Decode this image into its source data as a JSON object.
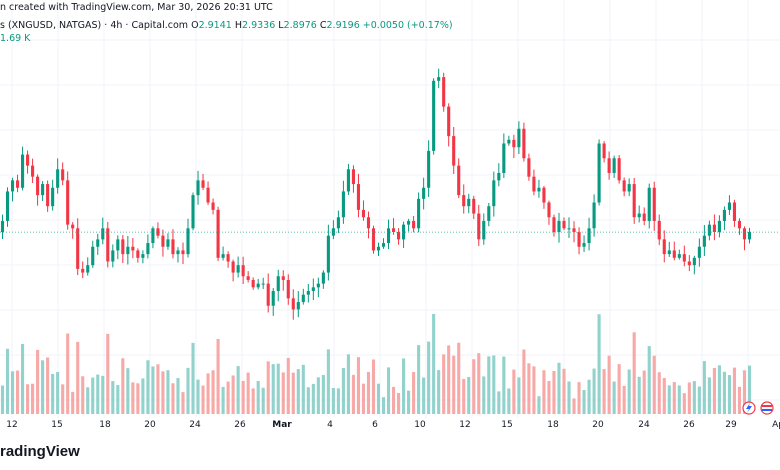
{
  "header": {
    "snapshot_text": "n created with TradingView.com, Mar 30, 2026 20:31 UTC",
    "symbol_text": "s (XNGUSD, NATGAS) · 4h · Capital.com",
    "ohlc": {
      "o_label": "O",
      "o_value": "2.9141",
      "h_label": "H",
      "h_value": "2.9336",
      "l_label": "L",
      "l_value": "2.8976",
      "c_label": "C",
      "c_value": "2.9196",
      "change": "+0.0050 (+0.17%)"
    },
    "volume_text": "1.69 K"
  },
  "footer": {
    "brand_text": "radingView",
    "x_labels": [
      "12",
      "15",
      "18",
      "20",
      "24",
      "26",
      "Mar",
      "4",
      "6",
      "10",
      "12",
      "15",
      "18",
      "20",
      "24",
      "26",
      "29",
      "Ap"
    ]
  },
  "colors": {
    "up": "#089981",
    "down": "#f23645",
    "up_volume": "#92d2cc",
    "down_volume": "#f7a9a7",
    "grid": "#f0f3fa",
    "price_line": "#22ab94"
  },
  "chart_data": {
    "type": "candlestick",
    "interval": "4h",
    "symbol": "XNGUSD",
    "closes": [
      2.95,
      3.03,
      3.06,
      3.04,
      3.13,
      3.1,
      3.07,
      3.02,
      3.05,
      2.99,
      3.04,
      3.09,
      3.06,
      2.94,
      2.93,
      2.82,
      2.81,
      2.83,
      2.88,
      2.9,
      2.93,
      2.84,
      2.87,
      2.9,
      2.86,
      2.88,
      2.87,
      2.85,
      2.86,
      2.89,
      2.93,
      2.91,
      2.88,
      2.9,
      2.86,
      2.87,
      2.86,
      2.93,
      3.02,
      3.06,
      3.04,
      3.0,
      2.98,
      2.85,
      2.86,
      2.84,
      2.81,
      2.83,
      2.8,
      2.79,
      2.77,
      2.78,
      2.78,
      2.72,
      2.76,
      2.8,
      2.79,
      2.74,
      2.71,
      2.73,
      2.75,
      2.76,
      2.77,
      2.78,
      2.81,
      2.91,
      2.93,
      2.96,
      3.03,
      3.09,
      3.05,
      2.98,
      2.96,
      2.93,
      2.87,
      2.88,
      2.89,
      2.93,
      2.92,
      2.9,
      2.94,
      2.95,
      2.93,
      3.01,
      3.04,
      3.14,
      3.33,
      3.34,
      3.26,
      3.18,
      3.1,
      3.02,
      2.99,
      3.01,
      2.97,
      2.9,
      2.95,
      2.99,
      3.06,
      3.08,
      3.16,
      3.17,
      3.15,
      3.2,
      3.12,
      3.07,
      3.03,
      3.04,
      3.0,
      2.96,
      2.92,
      2.95,
      2.93,
      2.93,
      2.92,
      2.88,
      2.89,
      2.93,
      3.0,
      3.16,
      3.12,
      3.08,
      3.12,
      3.06,
      3.03,
      3.05,
      2.96,
      2.97,
      2.95,
      3.04,
      2.95,
      2.9,
      2.86,
      2.87,
      2.85,
      2.86,
      2.84,
      2.83,
      2.85,
      2.88,
      2.91,
      2.94,
      2.92,
      2.95,
      2.98,
      3.0,
      2.95,
      2.93,
      2.9,
      2.92
    ],
    "volume_max_k": 4.0,
    "last_price": 2.9196
  }
}
